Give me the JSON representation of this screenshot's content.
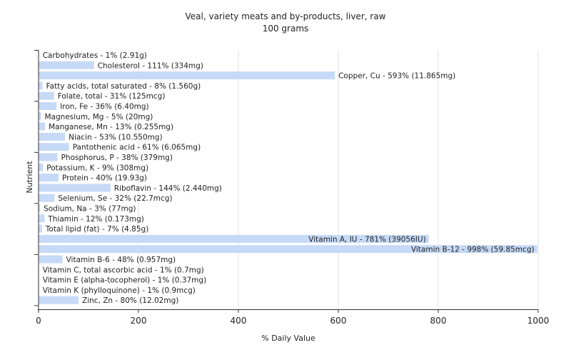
{
  "chart_data": {
    "type": "bar",
    "orientation": "horizontal",
    "title": "Veal, variety meats and by-products, liver, raw",
    "subtitle": "100 grams",
    "xlabel": "% Daily Value",
    "ylabel": "Nutrient",
    "xlim": [
      0,
      1000
    ],
    "xticks": [
      0,
      200,
      400,
      600,
      800,
      1000
    ],
    "grid": true,
    "bar_color": "#c6daf7",
    "categories": [
      "Carbohydrates",
      "Cholesterol",
      "Copper, Cu",
      "Fatty acids, total saturated",
      "Folate, total",
      "Iron, Fe",
      "Magnesium, Mg",
      "Manganese, Mn",
      "Niacin",
      "Pantothenic acid",
      "Phosphorus, P",
      "Potassium, K",
      "Protein",
      "Riboflavin",
      "Selenium, Se",
      "Sodium, Na",
      "Thiamin",
      "Total lipid (fat)",
      "Vitamin A, IU",
      "Vitamin B-12",
      "Vitamin B-6",
      "Vitamin C, total ascorbic acid",
      "Vitamin E (alpha-tocopherol)",
      "Vitamin K (phylloquinone)",
      "Zinc, Zn"
    ],
    "values": [
      1,
      111,
      593,
      8,
      31,
      36,
      5,
      13,
      53,
      61,
      38,
      9,
      40,
      144,
      32,
      3,
      12,
      7,
      781,
      998,
      48,
      1,
      1,
      1,
      80
    ],
    "labels": [
      "Carbohydrates - 1% (2.91g)",
      "Cholesterol - 111% (334mg)",
      "Copper, Cu - 593% (11.865mg)",
      "Fatty acids, total saturated - 8% (1.560g)",
      "Folate, total - 31% (125mcg)",
      "Iron, Fe - 36% (6.40mg)",
      "Magnesium, Mg - 5% (20mg)",
      "Manganese, Mn - 13% (0.255mg)",
      "Niacin - 53% (10.550mg)",
      "Pantothenic acid - 61% (6.065mg)",
      "Phosphorus, P - 38% (379mg)",
      "Potassium, K - 9% (308mg)",
      "Protein - 40% (19.93g)",
      "Riboflavin - 144% (2.440mg)",
      "Selenium, Se - 32% (22.7mcg)",
      "Sodium, Na - 3% (77mg)",
      "Thiamin - 12% (0.173mg)",
      "Total lipid (fat) - 7% (4.85g)",
      "Vitamin A, IU - 781% (39056IU)",
      "Vitamin B-12 - 998% (59.85mcg)",
      "Vitamin B-6 - 48% (0.957mg)",
      "Vitamin C, total ascorbic acid - 1% (0.7mg)",
      "Vitamin E (alpha-tocopherol) - 1% (0.37mg)",
      "Vitamin K (phylloquinone) - 1% (0.9mcg)",
      "Zinc, Zn - 80% (12.02mg)"
    ]
  }
}
